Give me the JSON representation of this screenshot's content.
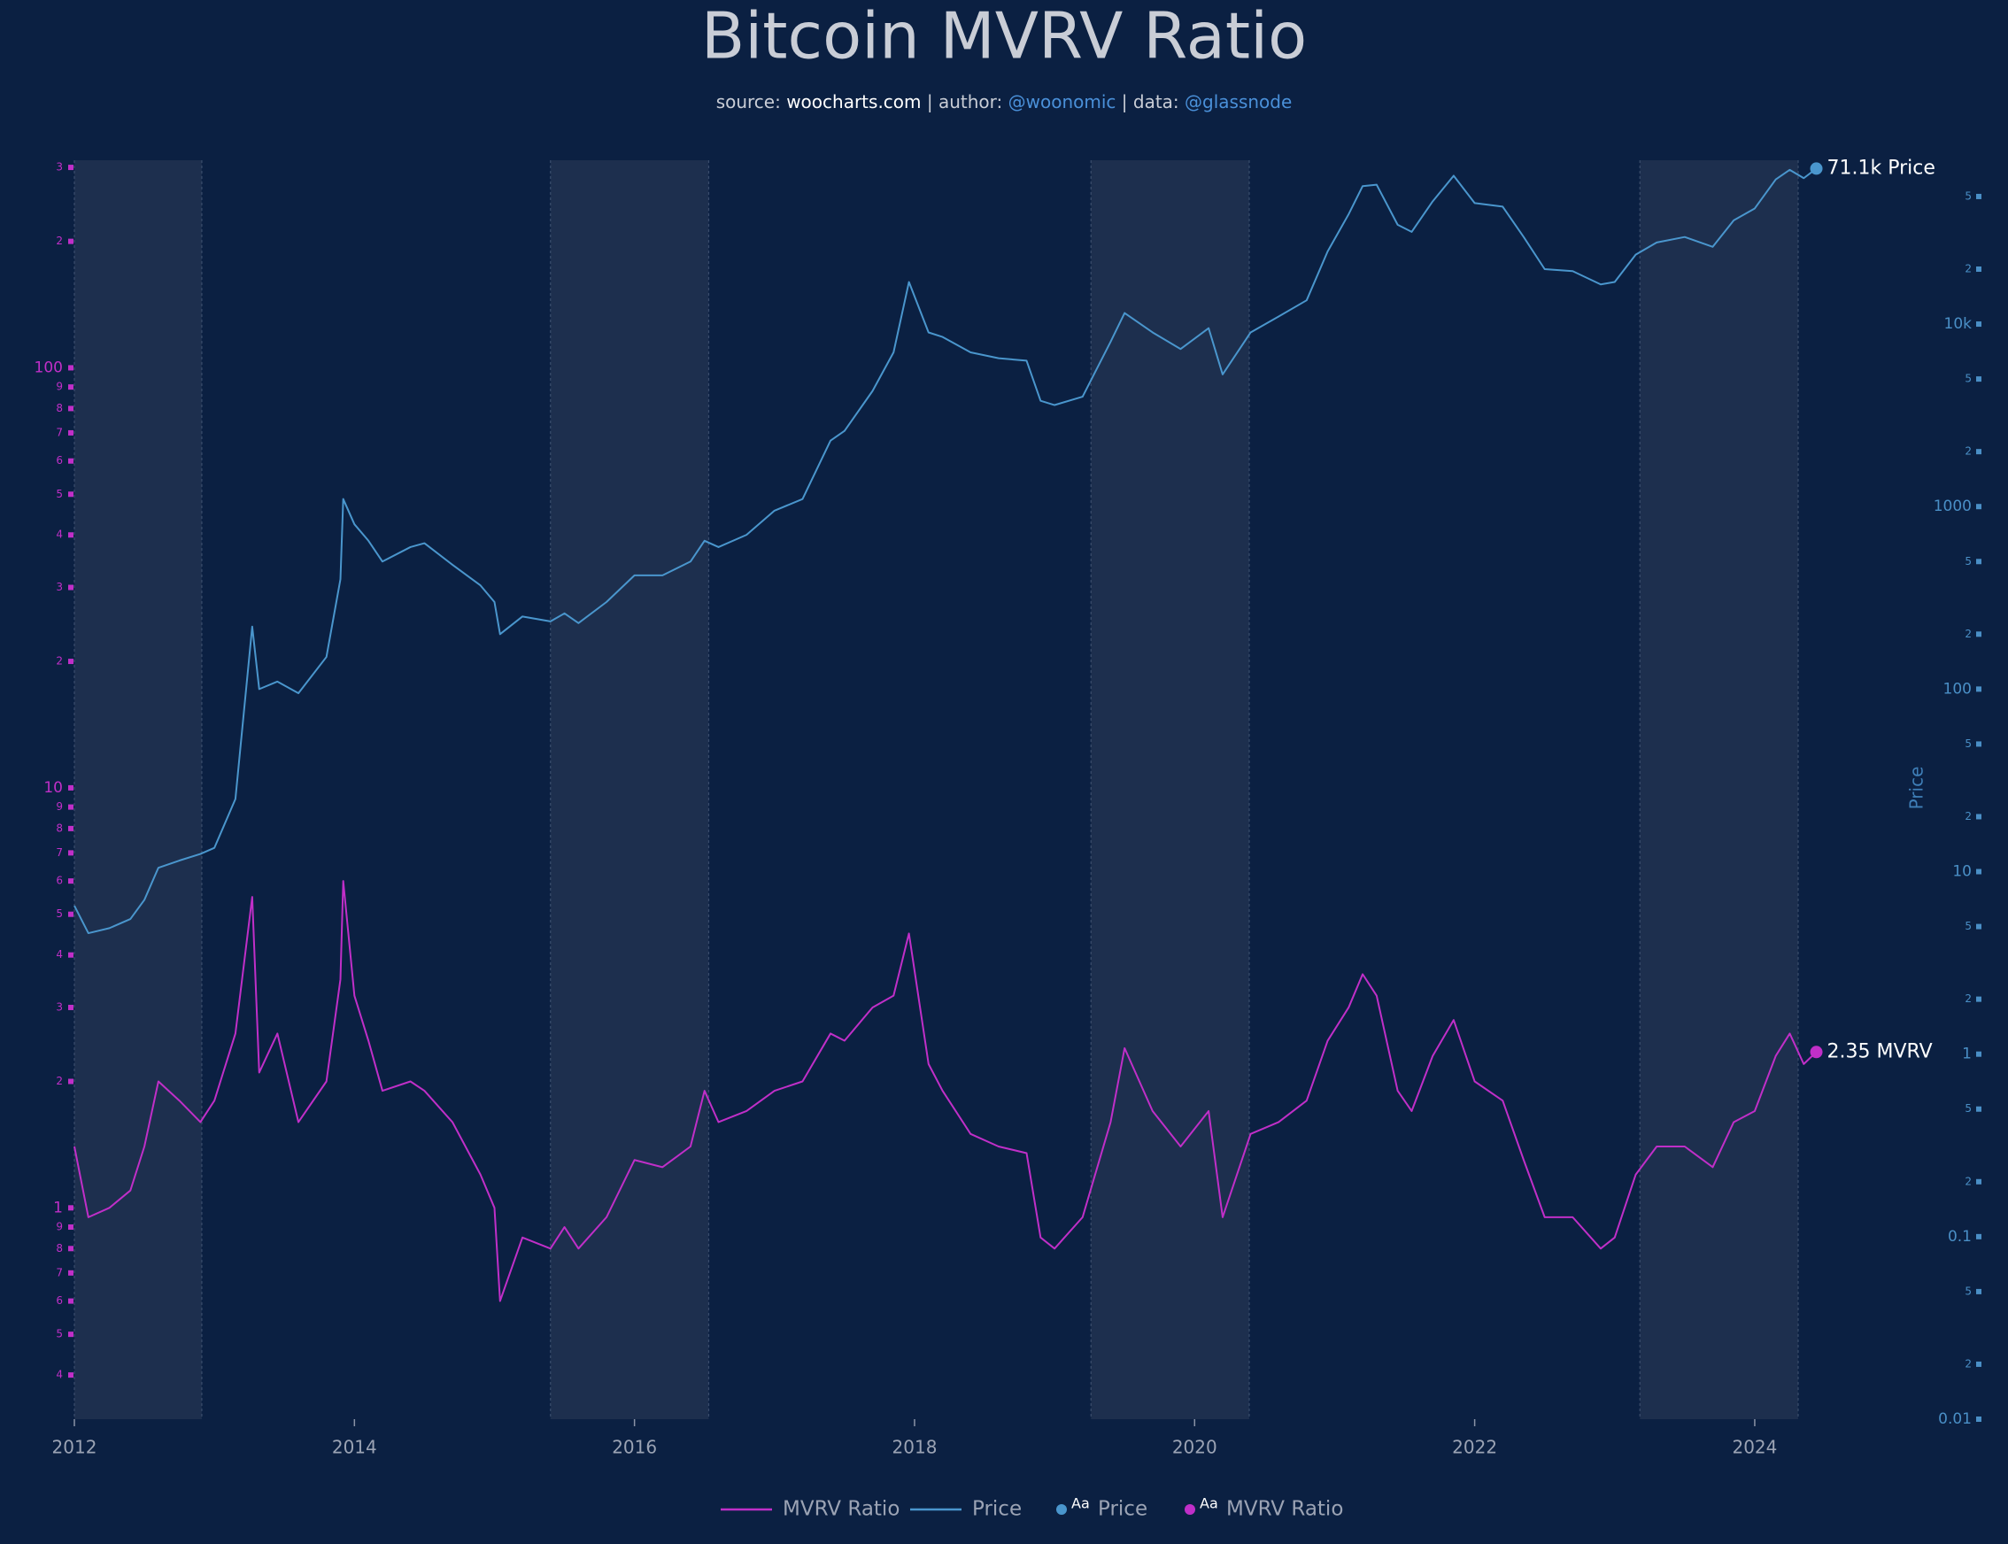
{
  "chart_data": {
    "type": "line",
    "title": "Bitcoin MVRV Ratio",
    "subtitle_parts": [
      "source: ",
      "woocharts.com",
      " | author: ",
      "@woonomic",
      " | data: ",
      "@glassnode"
    ],
    "y2label": "Price",
    "log_y": true,
    "log_y2": true,
    "grid": false,
    "background": "#0b2042",
    "band_color": "#1d2f4e",
    "xlim": [
      2012,
      2025.6
    ],
    "xticks": [
      2012,
      2014,
      2016,
      2018,
      2020,
      2022,
      2024
    ],
    "ylim": [
      0.314,
      312
    ],
    "yticks": [
      {
        "value": 0.4,
        "label": "4"
      },
      {
        "value": 0.5,
        "label": "5"
      },
      {
        "value": 0.6,
        "label": "6"
      },
      {
        "value": 0.7,
        "label": "7"
      },
      {
        "value": 0.8,
        "label": "8"
      },
      {
        "value": 0.9,
        "label": "9"
      },
      1,
      2,
      3,
      4,
      5,
      6,
      7,
      8,
      9,
      10,
      {
        "value": 20,
        "label": "2"
      },
      {
        "value": 30,
        "label": "3"
      },
      {
        "value": 40,
        "label": "4"
      },
      {
        "value": 50,
        "label": "5"
      },
      {
        "value": 60,
        "label": "6"
      },
      {
        "value": 70,
        "label": "7"
      },
      {
        "value": 80,
        "label": "8"
      },
      {
        "value": 90,
        "label": "9"
      },
      100,
      {
        "value": 200,
        "label": "2"
      },
      {
        "value": 300,
        "label": "3"
      }
    ],
    "y2lim": [
      0.01,
      79000
    ],
    "y2ticks": [
      0.01,
      {
        "value": 0.02,
        "label": "2"
      },
      {
        "value": 0.05,
        "label": "5"
      },
      0.1,
      {
        "value": 0.2,
        "label": "2"
      },
      {
        "value": 0.5,
        "label": "5"
      },
      1,
      2,
      5,
      10,
      {
        "value": 20,
        "label": "2"
      },
      {
        "value": 50,
        "label": "5"
      },
      100,
      {
        "value": 200,
        "label": "2"
      },
      {
        "value": 500,
        "label": "5"
      },
      1000,
      {
        "value": 2000,
        "label": "2"
      },
      {
        "value": 5000,
        "label": "5"
      },
      {
        "value": 10000,
        "label": "10k"
      },
      {
        "value": 20000,
        "label": "2"
      },
      {
        "value": 50000,
        "label": "5"
      }
    ],
    "shaded_periods": [
      [
        2012,
        2012.91
      ],
      [
        2015.4,
        2016.53
      ],
      [
        2019.26,
        2020.39
      ],
      [
        2023.18,
        2024.31
      ]
    ],
    "x": [
      2012.0,
      2012.1,
      2012.25,
      2012.4,
      2012.5,
      2012.6,
      2012.75,
      2012.9,
      2013.0,
      2013.15,
      2013.27,
      2013.32,
      2013.45,
      2013.6,
      2013.8,
      2013.9,
      2013.92,
      2014.0,
      2014.1,
      2014.2,
      2014.4,
      2014.5,
      2014.7,
      2014.9,
      2015.0,
      2015.04,
      2015.2,
      2015.4,
      2015.5,
      2015.6,
      2015.8,
      2016.0,
      2016.2,
      2016.4,
      2016.5,
      2016.6,
      2016.8,
      2017.0,
      2017.2,
      2017.4,
      2017.5,
      2017.7,
      2017.85,
      2017.96,
      2018.1,
      2018.2,
      2018.4,
      2018.6,
      2018.8,
      2018.9,
      2019.0,
      2019.2,
      2019.4,
      2019.5,
      2019.7,
      2019.9,
      2020.1,
      2020.2,
      2020.4,
      2020.6,
      2020.8,
      2020.95,
      2021.1,
      2021.2,
      2021.3,
      2021.45,
      2021.55,
      2021.7,
      2021.85,
      2022.0,
      2022.2,
      2022.35,
      2022.5,
      2022.7,
      2022.9,
      2023.0,
      2023.15,
      2023.3,
      2023.5,
      2023.7,
      2023.85,
      2024.0,
      2024.15,
      2024.25,
      2024.35,
      2024.44
    ],
    "series": [
      {
        "name": "MVRV Ratio",
        "color": "#c02fc8",
        "axis": "y",
        "last_label": "2.35 MVRV",
        "values": [
          1.4,
          0.95,
          1.0,
          1.1,
          1.4,
          2.0,
          1.8,
          1.6,
          1.8,
          2.6,
          5.5,
          2.1,
          2.6,
          1.6,
          2.0,
          3.5,
          6.0,
          3.2,
          2.5,
          1.9,
          2.0,
          1.9,
          1.6,
          1.2,
          1.0,
          0.6,
          0.85,
          0.8,
          0.9,
          0.8,
          0.95,
          1.3,
          1.25,
          1.4,
          1.9,
          1.6,
          1.7,
          1.9,
          2.0,
          2.6,
          2.5,
          3.0,
          3.2,
          4.5,
          2.2,
          1.9,
          1.5,
          1.4,
          1.35,
          0.85,
          0.8,
          0.95,
          1.6,
          2.4,
          1.7,
          1.4,
          1.7,
          0.95,
          1.5,
          1.6,
          1.8,
          2.5,
          3.0,
          3.6,
          3.2,
          1.9,
          1.7,
          2.3,
          2.8,
          2.0,
          1.8,
          1.3,
          0.95,
          0.95,
          0.8,
          0.85,
          1.2,
          1.4,
          1.4,
          1.25,
          1.6,
          1.7,
          2.3,
          2.6,
          2.2,
          2.35
        ]
      },
      {
        "name": "Price",
        "color": "#4a96cd",
        "axis": "y2",
        "last_label": "71.1k Price",
        "values": [
          6.5,
          4.6,
          4.9,
          5.5,
          7.0,
          10.5,
          11.5,
          12.5,
          13.5,
          25,
          220,
          100,
          110,
          95,
          150,
          400,
          1100,
          800,
          650,
          500,
          600,
          630,
          480,
          370,
          300,
          200,
          250,
          235,
          260,
          230,
          300,
          420,
          420,
          500,
          650,
          600,
          700,
          950,
          1100,
          2300,
          2600,
          4300,
          7000,
          17000,
          9000,
          8500,
          7000,
          6500,
          6300,
          3800,
          3600,
          4000,
          8000,
          11500,
          9000,
          7300,
          9500,
          5300,
          9000,
          11000,
          13500,
          25000,
          40000,
          57000,
          58000,
          35000,
          32000,
          47000,
          65000,
          46000,
          44000,
          30000,
          20000,
          19500,
          16500,
          17000,
          24000,
          28000,
          30000,
          26500,
          37000,
          43000,
          62000,
          70000,
          63000,
          71100
        ]
      }
    ],
    "label_legend": [
      "Price",
      "MVRV Ratio"
    ],
    "label_legend_marker": "Aa"
  }
}
